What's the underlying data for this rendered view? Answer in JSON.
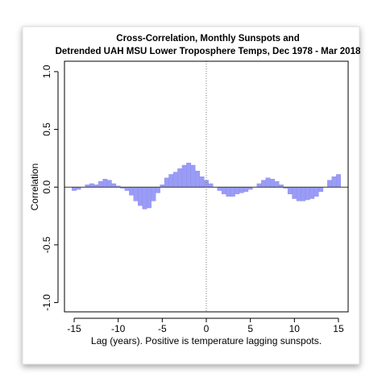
{
  "chart_data": {
    "type": "bar",
    "title": [
      "Cross-Correlation, Monthly Sunspots and",
      "Detrended UAH MSU Lower Troposphere Temps, Dec 1978 - Mar 2018"
    ],
    "x_label": "Lag (years). Positive is temperature lagging sunspots.",
    "y_label": "Correlation",
    "x": [
      -15,
      -14.5,
      -14,
      -13.5,
      -13,
      -12.5,
      -12,
      -11.5,
      -11,
      -10.5,
      -10,
      -9.5,
      -9,
      -8.5,
      -8,
      -7.5,
      -7,
      -6.5,
      -6,
      -5.5,
      -5,
      -4.5,
      -4,
      -3.5,
      -3,
      -2.5,
      -2,
      -1.5,
      -1,
      -0.5,
      0,
      0.5,
      1,
      1.5,
      2,
      2.5,
      3,
      3.5,
      4,
      4.5,
      5,
      5.5,
      6,
      6.5,
      7,
      7.5,
      8,
      8.5,
      9,
      9.5,
      10,
      10.5,
      11,
      11.5,
      12,
      12.5,
      13,
      13.5,
      14,
      14.5,
      15
    ],
    "values": [
      -0.03,
      -0.02,
      0,
      0.02,
      0.03,
      0.02,
      0.05,
      0.07,
      0.06,
      0.03,
      0.01,
      -0.01,
      -0.03,
      -0.07,
      -0.12,
      -0.16,
      -0.19,
      -0.18,
      -0.12,
      -0.05,
      0.02,
      0.08,
      0.11,
      0.13,
      0.16,
      0.19,
      0.21,
      0.19,
      0.14,
      0.09,
      0.06,
      0.03,
      0,
      -0.03,
      -0.06,
      -0.08,
      -0.08,
      -0.06,
      -0.05,
      -0.04,
      -0.02,
      0,
      0.03,
      0.06,
      0.08,
      0.07,
      0.05,
      0.02,
      -0.01,
      -0.06,
      -0.1,
      -0.12,
      -0.12,
      -0.11,
      -0.1,
      -0.08,
      -0.04,
      0,
      0.06,
      0.09,
      0.11
    ],
    "color": "#9a9cf5",
    "xlim": [
      -16.1,
      16.1
    ],
    "ylim": [
      -1.08,
      1.09
    ],
    "xticks": [
      -15,
      -10,
      -5,
      0,
      5,
      10,
      15
    ],
    "yticks": [
      {
        "value": -1,
        "label": "-1.0"
      },
      {
        "value": -0.5,
        "label": "-0.5"
      },
      {
        "value": 0,
        "label": "0.0"
      },
      {
        "value": 0.5,
        "label": "0.5"
      },
      {
        "value": 1,
        "label": "1.0"
      }
    ],
    "reference_lines": {
      "h": 0,
      "v": 0
    }
  }
}
